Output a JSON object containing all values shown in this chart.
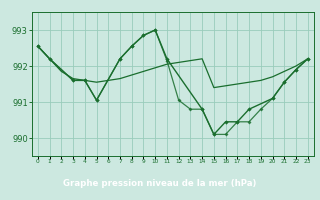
{
  "background_color": "#cce8e0",
  "grid_color": "#99ccbb",
  "line_color": "#1a6e2e",
  "title_bg": "#2a7a3a",
  "title_text": "Graphe pression niveau de la mer (hPa)",
  "title_text_color": "#ffffff",
  "ylabel_ticks": [
    990,
    991,
    992,
    993
  ],
  "xlim": [
    -0.5,
    23.5
  ],
  "ylim": [
    989.5,
    993.5
  ],
  "series": {
    "smooth_x": [
      0,
      1,
      2,
      3,
      4,
      5,
      6,
      7,
      8,
      9,
      10,
      11,
      12,
      13,
      14,
      15,
      16,
      17,
      18,
      19,
      20,
      21,
      22,
      23
    ],
    "smooth_y": [
      992.55,
      992.2,
      991.85,
      991.65,
      991.6,
      991.55,
      991.6,
      991.65,
      991.75,
      991.85,
      991.95,
      992.05,
      992.1,
      992.15,
      992.2,
      991.4,
      991.45,
      991.5,
      991.55,
      991.6,
      991.7,
      991.85,
      992.0,
      992.2
    ],
    "line1_x": [
      0,
      1,
      3,
      4,
      5,
      7,
      8,
      9,
      10,
      11,
      14,
      15,
      16,
      17,
      18,
      20,
      21,
      22,
      23
    ],
    "line1_y": [
      992.55,
      992.2,
      991.6,
      991.6,
      991.05,
      992.2,
      992.55,
      992.85,
      993.0,
      992.2,
      990.8,
      990.1,
      990.45,
      990.45,
      990.8,
      991.1,
      991.55,
      991.9,
      992.2
    ],
    "line2_x": [
      0,
      1,
      3,
      4,
      5,
      7,
      8,
      9,
      10,
      11,
      12,
      13,
      14,
      15,
      16,
      17,
      18,
      19,
      20,
      21,
      22,
      23
    ],
    "line2_y": [
      992.55,
      992.2,
      991.6,
      991.6,
      991.05,
      992.2,
      992.55,
      992.85,
      993.0,
      992.15,
      991.05,
      990.8,
      990.8,
      990.1,
      990.1,
      990.45,
      990.45,
      990.8,
      991.1,
      991.55,
      991.9,
      992.2
    ]
  }
}
